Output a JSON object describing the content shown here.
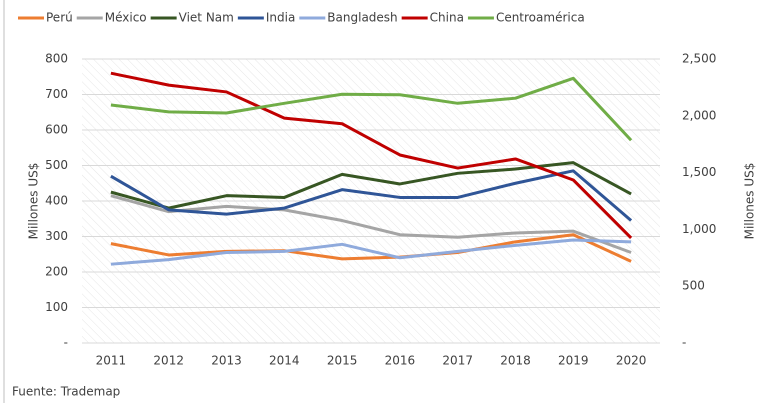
{
  "chart_data": {
    "type": "line",
    "categories": [
      "2011",
      "2012",
      "2013",
      "2014",
      "2015",
      "2016",
      "2017",
      "2018",
      "2019",
      "2020"
    ],
    "series": [
      {
        "name": "Perú",
        "color": "#ed7d31",
        "values": [
          280,
          248,
          258,
          260,
          237,
          242,
          255,
          285,
          305,
          230
        ]
      },
      {
        "name": "México",
        "color": "#a5a5a5",
        "values": [
          415,
          370,
          385,
          375,
          345,
          305,
          298,
          310,
          315,
          255
        ]
      },
      {
        "name": "Viet Nam",
        "color": "#375623",
        "values": [
          425,
          380,
          415,
          410,
          475,
          448,
          478,
          490,
          508,
          420
        ]
      },
      {
        "name": "India",
        "color": "#2f5597",
        "values": [
          470,
          375,
          363,
          380,
          432,
          410,
          410,
          450,
          485,
          345
        ]
      },
      {
        "name": "Bangladesh",
        "color": "#8faadc",
        "values": [
          222,
          235,
          255,
          258,
          278,
          240,
          258,
          275,
          290,
          285
        ]
      },
      {
        "name": "China",
        "color": "#c00000",
        "axis": "y2",
        "values": [
          2375,
          2270,
          2210,
          1980,
          1930,
          1655,
          1540,
          1620,
          1435,
          925
        ]
      },
      {
        "name": "Centroamérica",
        "color": "#70ad47",
        "axis": "y2",
        "values": [
          2095,
          2035,
          2025,
          2110,
          2190,
          2185,
          2110,
          2155,
          2330,
          1785
        ]
      }
    ],
    "ylabel": "Millones US$",
    "y2label": "Millones US$",
    "ylim": [
      0,
      800
    ],
    "yticks": [
      {
        "value": 0,
        "label": "-"
      },
      100,
      200,
      300,
      400,
      500,
      600,
      700,
      800
    ],
    "y2lim": [
      0,
      2500
    ],
    "y2ticks": [
      {
        "value": 0,
        "label": "-"
      },
      500,
      {
        "value": 1000,
        "label": "1,000"
      },
      {
        "value": 1500,
        "label": "1,500"
      },
      {
        "value": 2000,
        "label": "2,000"
      },
      {
        "value": 2500,
        "label": "2,500"
      }
    ],
    "grid": true,
    "legend": "top",
    "source": "Fuente: Trademap"
  }
}
